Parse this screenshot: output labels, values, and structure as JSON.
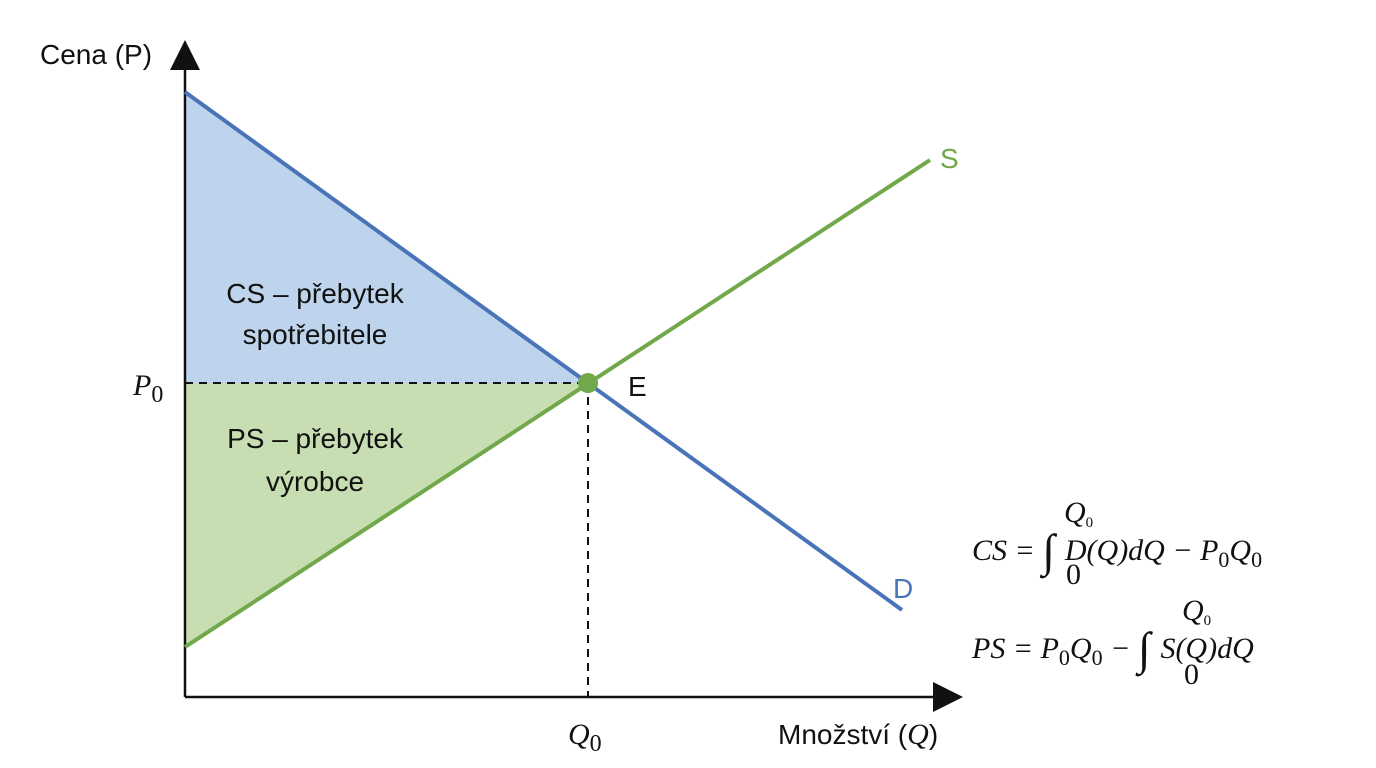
{
  "axes": {
    "y_label": "Cena (P)",
    "x_label": [
      "Množství (",
      "Q",
      ")"
    ]
  },
  "price": {
    "symbol": "P",
    "subscript": "0"
  },
  "quantity": {
    "symbol": "Q",
    "subscript": "0"
  },
  "equilibrium": {
    "label": "E"
  },
  "curves": {
    "supply": "S",
    "demand": "D"
  },
  "areas": {
    "consumer_surplus": [
      "CS – přebytek",
      "spotřebitele"
    ],
    "producer_surplus": [
      "PS – přebytek",
      "výrobce"
    ]
  },
  "formulas": [
    {
      "lhs": "CS = ",
      "integral": "∫",
      "upper": "Q",
      "upper_sub": "0",
      "lower": "0",
      "body": "D(Q)dQ − P",
      "sub1": "0",
      "tail": "Q",
      "sub2": "0"
    },
    {
      "lhs": "PS = P",
      "sub1": "0",
      "mid": "Q",
      "sub2": "0",
      "minus": " − ",
      "integral": "∫",
      "upper": "Q",
      "upper_sub": "0",
      "lower": "0",
      "body": "S(Q)dQ"
    }
  ]
}
